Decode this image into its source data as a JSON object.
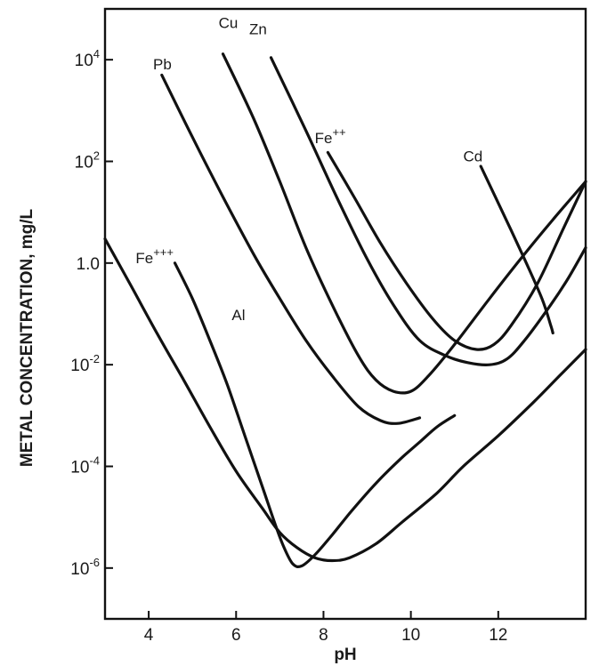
{
  "chart_data": {
    "type": "line",
    "title": "",
    "xlabel": "pH",
    "ylabel": "METAL CONCENTRATION, mg/L",
    "yscale": "log",
    "xlim": [
      3,
      14
    ],
    "ylim": [
      1e-07,
      100000.0
    ],
    "x_ticks": [
      {
        "value": 4,
        "label": "4"
      },
      {
        "value": 6,
        "label": "6"
      },
      {
        "value": 8,
        "label": "8"
      },
      {
        "value": 10,
        "label": "10"
      },
      {
        "value": 12,
        "label": "12"
      }
    ],
    "y_ticks": [
      {
        "value": 10000,
        "base": "10",
        "exp": "4"
      },
      {
        "value": 100,
        "base": "10",
        "exp": "2"
      },
      {
        "value": 1,
        "base": "1.0",
        "exp": ""
      },
      {
        "value": 0.01,
        "base": "10",
        "exp": "-2"
      },
      {
        "value": 0.0001,
        "base": "10",
        "exp": "-4"
      },
      {
        "value": 1e-06,
        "base": "10",
        "exp": "-6"
      }
    ],
    "grid": false,
    "series": [
      {
        "name": "Cu",
        "label_base": "Cu",
        "label_sup": "",
        "label_at": [
          5.6,
          42000
        ],
        "points": [
          [
            5.7,
            13000
          ],
          [
            6.4,
            700
          ],
          [
            7.0,
            40
          ],
          [
            7.6,
            2
          ],
          [
            8.2,
            0.15
          ],
          [
            8.8,
            0.015
          ],
          [
            9.2,
            0.005
          ],
          [
            9.6,
            0.003
          ],
          [
            10.0,
            0.003
          ],
          [
            10.4,
            0.006
          ],
          [
            11.0,
            0.025
          ],
          [
            11.8,
            0.2
          ],
          [
            12.6,
            1.5
          ],
          [
            13.3,
            8
          ],
          [
            14.0,
            40
          ]
        ]
      },
      {
        "name": "Zn",
        "label_base": "Zn",
        "label_sup": "",
        "label_at": [
          6.3,
          32000
        ],
        "points": [
          [
            6.8,
            11000
          ],
          [
            7.6,
            400
          ],
          [
            8.3,
            20
          ],
          [
            9.0,
            1.2
          ],
          [
            9.6,
            0.15
          ],
          [
            10.2,
            0.03
          ],
          [
            10.8,
            0.015
          ],
          [
            11.3,
            0.011
          ],
          [
            11.8,
            0.01
          ],
          [
            12.2,
            0.013
          ],
          [
            12.6,
            0.03
          ],
          [
            13.2,
            0.15
          ],
          [
            13.6,
            0.5
          ],
          [
            14.0,
            2
          ]
        ]
      },
      {
        "name": "Pb",
        "label_base": "Pb",
        "label_sup": "",
        "label_at": [
          4.1,
          6500
        ],
        "points": [
          [
            4.3,
            5000
          ],
          [
            5.0,
            300
          ],
          [
            5.7,
            20
          ],
          [
            6.4,
            1.5
          ],
          [
            7.0,
            0.2
          ],
          [
            7.6,
            0.03
          ],
          [
            8.2,
            0.006
          ],
          [
            8.8,
            0.0015
          ],
          [
            9.3,
            0.0008
          ],
          [
            9.7,
            0.0007
          ],
          [
            10.2,
            0.0009
          ]
        ]
      },
      {
        "name": "Fe++",
        "label_base": "Fe",
        "label_sup": "++",
        "label_at": [
          7.8,
          230
        ],
        "points": [
          [
            8.1,
            150
          ],
          [
            8.7,
            20
          ],
          [
            9.3,
            2.5
          ],
          [
            9.9,
            0.4
          ],
          [
            10.5,
            0.08
          ],
          [
            11.0,
            0.03
          ],
          [
            11.5,
            0.02
          ],
          [
            11.9,
            0.025
          ],
          [
            12.3,
            0.06
          ],
          [
            12.9,
            0.4
          ],
          [
            13.5,
            5
          ],
          [
            14.0,
            40
          ]
        ]
      },
      {
        "name": "Cd",
        "label_base": "Cd",
        "label_sup": "",
        "label_at": [
          11.2,
          100
        ],
        "points": [
          [
            11.6,
            80
          ],
          [
            12.1,
            10
          ],
          [
            12.6,
            1.2
          ],
          [
            13.0,
            0.2
          ],
          [
            13.2,
            0.06
          ],
          [
            13.25,
            0.042
          ]
        ]
      },
      {
        "name": "Fe+++",
        "label_base": "Fe",
        "label_sup": "+++",
        "label_at": [
          3.7,
          1.0
        ],
        "points": [
          [
            3.0,
            3
          ],
          [
            3.6,
            0.35
          ],
          [
            4.2,
            0.04
          ],
          [
            4.8,
            0.005
          ],
          [
            5.4,
            0.0006
          ],
          [
            6.0,
            8e-05
          ],
          [
            6.6,
            1.5e-05
          ],
          [
            7.0,
            5e-06
          ],
          [
            7.4,
            2.5e-06
          ],
          [
            7.8,
            1.6e-06
          ],
          [
            8.2,
            1.4e-06
          ],
          [
            8.6,
            1.6e-06
          ],
          [
            9.2,
            3e-06
          ],
          [
            9.8,
            8e-06
          ],
          [
            10.6,
            3e-05
          ],
          [
            11.2,
            0.0001
          ],
          [
            12.0,
            0.0004
          ],
          [
            12.8,
            0.0018
          ],
          [
            13.4,
            0.006
          ],
          [
            14.0,
            0.02
          ]
        ]
      },
      {
        "name": "Al",
        "label_base": "Al",
        "label_sup": "",
        "label_at": [
          5.9,
          0.075
        ],
        "points": [
          [
            4.6,
            1.0
          ],
          [
            5.0,
            0.2
          ],
          [
            5.4,
            0.03
          ],
          [
            5.8,
            0.004
          ],
          [
            6.2,
            0.0004
          ],
          [
            6.6,
            4e-05
          ],
          [
            6.9,
            7e-06
          ],
          [
            7.1,
            2.5e-06
          ],
          [
            7.3,
            1.2e-06
          ],
          [
            7.5,
            1.1e-06
          ],
          [
            7.8,
            1.8e-06
          ],
          [
            8.2,
            4.5e-06
          ],
          [
            8.6,
            1.2e-05
          ],
          [
            9.0,
            3e-05
          ],
          [
            9.4,
            7e-05
          ],
          [
            9.8,
            0.00015
          ],
          [
            10.2,
            0.0003
          ],
          [
            10.6,
            0.0006
          ],
          [
            11.0,
            0.001
          ]
        ]
      }
    ]
  }
}
